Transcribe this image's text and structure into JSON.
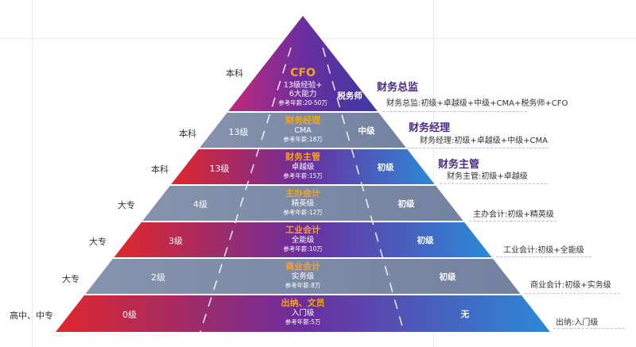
{
  "tiers": [
    {
      "id": "cfo",
      "edu": "本科",
      "level": "",
      "title": "CFO",
      "sub": "13级经验+\n6大能力",
      "pay": "参考年薪:20-50万",
      "right": "税务师",
      "role_head": "财务总监",
      "role_desc": "财务总监:初级+卓越级+中级+CMA+税务师+CFO"
    },
    {
      "id": "finance-manager",
      "edu": "本科",
      "level": "13级",
      "title": "财务经理",
      "sub": "CMA",
      "pay": "参考年薪:18万",
      "right": "中级",
      "role_head": "财务经理",
      "role_desc": "财务经理:初级+卓越级+中级+CMA"
    },
    {
      "id": "finance-supervisor",
      "edu": "本科",
      "level": "13级",
      "title": "财务主管",
      "sub": "卓越级",
      "pay": "参考年薪:15万",
      "right": "初级",
      "role_head": "财务主管",
      "role_desc": "财务主管:初级+卓越级"
    },
    {
      "id": "chief-accountant",
      "edu": "大专",
      "level": "4级",
      "title": "主办会计",
      "sub": "精英级",
      "pay": "参考年薪:12万",
      "right": "初级",
      "role_head": "",
      "role_desc": "主办会计:初级+精英级"
    },
    {
      "id": "industrial-accountant",
      "edu": "大专",
      "level": "3级",
      "title": "工业会计",
      "sub": "全能级",
      "pay": "参考年薪:10万",
      "right": "初级",
      "role_head": "",
      "role_desc": "工业会计:初级+全能级"
    },
    {
      "id": "commercial-accountant",
      "edu": "大专",
      "level": "2级",
      "title": "商业会计",
      "sub": "实务级",
      "pay": "参考年薪:8万",
      "right": "初级",
      "role_head": "",
      "role_desc": "商业会计:初级+实务级"
    },
    {
      "id": "cashier",
      "edu": "高中、中专",
      "level": "0级",
      "title": "出纳、文员",
      "sub": "入门级",
      "pay": "参考年薪:5万",
      "right": "无",
      "role_head": "",
      "role_desc": "出纳:入门级"
    }
  ],
  "colors": {
    "gradient_red": "#e0272b",
    "gradient_purple": "#6b2e9e",
    "gradient_blue": "#2a8ad8",
    "grey_band": "#7b8aa6",
    "title_orange": "#f7a21b",
    "heading_purple": "#4a2a8a"
  }
}
